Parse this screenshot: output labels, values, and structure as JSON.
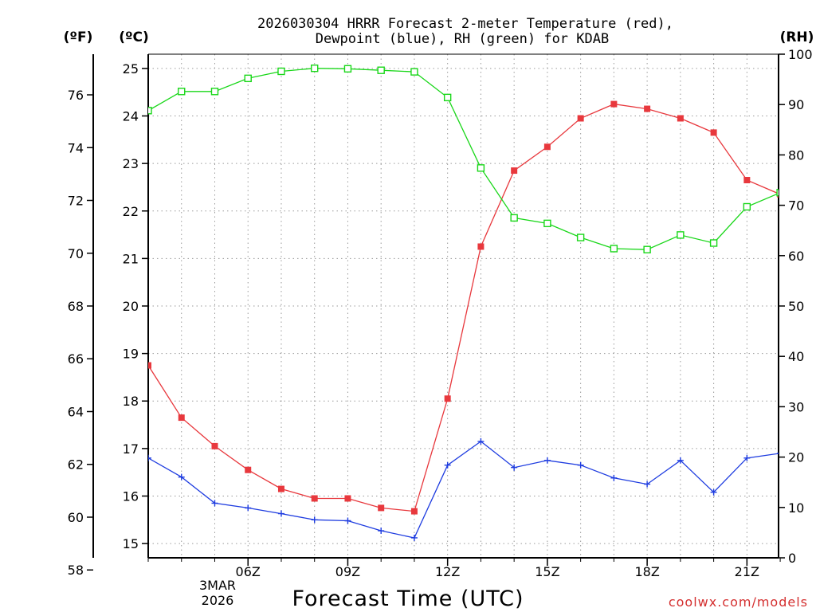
{
  "chart_data": {
    "type": "line",
    "title_line1": "2026030304 HRRR Forecast 2-meter Temperature (red),",
    "title_line2": "Dewpoint (blue), RH (green) for KDAB",
    "unit_fahrenheit": "(ºF)",
    "unit_celsius": "(ºC)",
    "unit_rh": "(RH)",
    "xlabel": "Forecast Time (UTC)",
    "date_day": "3MAR",
    "date_year": "2026",
    "credit": "coolwx.com/models",
    "credit_color": "#d42f2f",
    "x_hours": [
      3,
      4,
      5,
      6,
      7,
      8,
      9,
      10,
      11,
      12,
      13,
      14,
      15,
      16,
      17,
      18,
      19,
      20,
      21,
      22
    ],
    "x_range": [
      3,
      21.95
    ],
    "x_ticks": [
      {
        "hour": 6,
        "label": "06Z"
      },
      {
        "hour": 9,
        "label": "09Z"
      },
      {
        "hour": 12,
        "label": "12Z"
      },
      {
        "hour": 15,
        "label": "15Z"
      },
      {
        "hour": 18,
        "label": "18Z"
      },
      {
        "hour": 21,
        "label": "21Z"
      }
    ],
    "celsius_axis": {
      "range": [
        14.7,
        25.3
      ],
      "ticks": [
        "15",
        "16",
        "17",
        "18",
        "19",
        "20",
        "21",
        "22",
        "23",
        "24",
        "25"
      ]
    },
    "fahrenheit_axis": {
      "range": [
        58.46,
        77.54
      ],
      "ticks": [
        "58",
        "60",
        "62",
        "64",
        "66",
        "68",
        "70",
        "72",
        "74",
        "76"
      ]
    },
    "rh_axis": {
      "range": [
        0,
        100
      ],
      "ticks": [
        "0",
        "10",
        "20",
        "30",
        "40",
        "50",
        "60",
        "70",
        "80",
        "90",
        "100"
      ]
    },
    "series": [
      {
        "name": "Temperature",
        "color": "#e8383d",
        "axis": "celsius",
        "marker": "filled-square",
        "values": [
          18.75,
          17.65,
          17.05,
          16.55,
          16.15,
          15.95,
          15.95,
          15.75,
          15.68,
          18.05,
          21.25,
          22.85,
          23.35,
          23.95,
          24.25,
          24.15,
          23.95,
          23.65,
          22.65,
          22.35
        ]
      },
      {
        "name": "Dewpoint",
        "color": "#1e3ce0",
        "axis": "celsius",
        "marker": "plus",
        "values": [
          16.8,
          16.4,
          15.85,
          15.75,
          15.63,
          15.5,
          15.48,
          15.27,
          15.12,
          16.65,
          17.15,
          16.6,
          16.75,
          16.65,
          16.38,
          16.25,
          16.75,
          16.08,
          16.8,
          16.9
        ]
      },
      {
        "name": "RH",
        "color": "#19d719",
        "axis": "rh",
        "marker": "open-square",
        "values": [
          88.8,
          92.6,
          92.6,
          95.2,
          96.6,
          97.2,
          97.1,
          96.8,
          96.5,
          91.4,
          77.4,
          67.5,
          66.4,
          63.6,
          61.4,
          61.2,
          64.1,
          62.5,
          69.7,
          72.5
        ]
      }
    ]
  }
}
